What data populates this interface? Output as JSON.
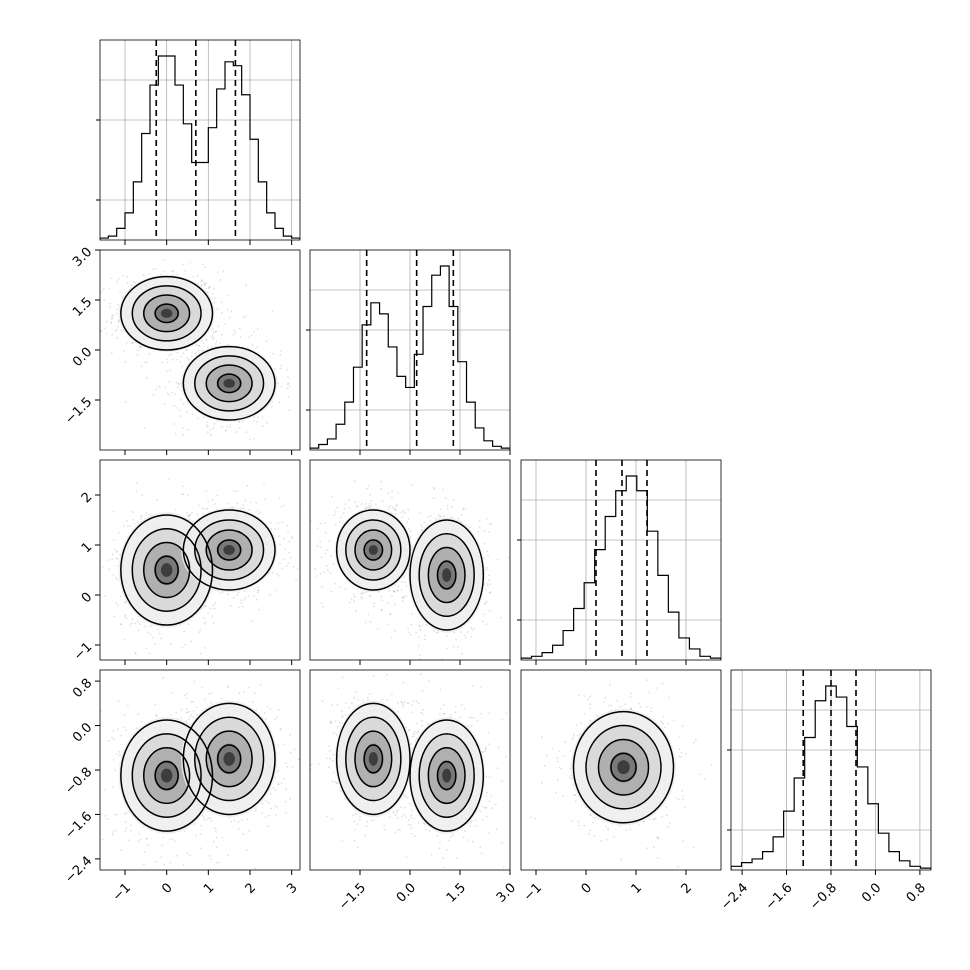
{
  "chart_data": {
    "type": "corner",
    "parameters": [
      "",
      "",
      "",
      ""
    ],
    "axes": [
      {
        "range": [
          -1.6,
          3.2
        ],
        "ticks": [
          -1,
          0,
          1,
          2,
          3
        ],
        "tick_labels": [
          "−1",
          "0",
          "1",
          "2",
          "3"
        ]
      },
      {
        "range": [
          -3.0,
          3.0
        ],
        "ticks": [
          -1.5,
          0.0,
          1.5,
          3.0
        ],
        "tick_labels": [
          "−1.5",
          "0.0",
          "1.5",
          "3.0"
        ]
      },
      {
        "range": [
          -1.3,
          2.7
        ],
        "ticks": [
          -1,
          0,
          1,
          2
        ],
        "tick_labels": [
          "−1",
          "0",
          "1",
          "2"
        ]
      },
      {
        "range": [
          -2.6,
          1.0
        ],
        "ticks": [
          -2.4,
          -1.6,
          -0.8,
          0.0,
          0.8
        ],
        "tick_labels": [
          "−2.4",
          "−1.6",
          "−0.8",
          "0.0",
          "0.8"
        ]
      }
    ],
    "grid": true,
    "histograms": [
      {
        "param": 0,
        "bin_edges_range": [
          -1.6,
          3.2
        ],
        "quantile_lines": [
          -0.25,
          0.7,
          1.65
        ],
        "counts": [
          1,
          2,
          6,
          14,
          30,
          55,
          80,
          95,
          95,
          80,
          60,
          40,
          40,
          58,
          78,
          92,
          90,
          75,
          52,
          30,
          14,
          6,
          2,
          1
        ]
      },
      {
        "param": 1,
        "bin_edges_range": [
          -3.0,
          3.0
        ],
        "quantile_lines": [
          -1.3,
          0.2,
          1.3
        ],
        "counts": [
          1,
          3,
          6,
          14,
          26,
          45,
          68,
          80,
          74,
          56,
          40,
          34,
          52,
          78,
          95,
          100,
          78,
          48,
          26,
          12,
          5,
          2,
          1
        ]
      },
      {
        "param": 2,
        "bin_edges_range": [
          -1.3,
          2.7
        ],
        "quantile_lines": [
          0.2,
          0.72,
          1.22
        ],
        "counts": [
          1,
          2,
          4,
          8,
          16,
          28,
          42,
          60,
          78,
          92,
          100,
          92,
          70,
          46,
          26,
          12,
          6,
          2,
          1
        ]
      },
      {
        "param": 3,
        "bin_edges_range": [
          -2.6,
          1.0
        ],
        "quantile_lines": [
          -1.3,
          -0.8,
          -0.35
        ],
        "counts": [
          2,
          4,
          6,
          10,
          18,
          32,
          50,
          72,
          92,
          100,
          94,
          78,
          56,
          36,
          20,
          10,
          5,
          2,
          1
        ]
      }
    ],
    "pairs": [
      {
        "x": 0,
        "y": 1,
        "modes": [
          {
            "center": [
              0.0,
              1.1
            ],
            "sigma": [
              0.55,
              0.55
            ],
            "rho": 0
          },
          {
            "center": [
              1.5,
              -1.0
            ],
            "sigma": [
              0.55,
              0.55
            ],
            "rho": 0
          }
        ]
      },
      {
        "x": 0,
        "y": 2,
        "modes": [
          {
            "center": [
              0.0,
              0.5
            ],
            "sigma": [
              0.55,
              0.55
            ],
            "rho": 0
          },
          {
            "center": [
              1.5,
              0.9
            ],
            "sigma": [
              0.55,
              0.4
            ],
            "rho": 0
          }
        ]
      },
      {
        "x": 1,
        "y": 2,
        "modes": [
          {
            "center": [
              -1.1,
              0.9
            ],
            "sigma": [
              0.55,
              0.4
            ],
            "rho": 0
          },
          {
            "center": [
              1.1,
              0.4
            ],
            "sigma": [
              0.55,
              0.55
            ],
            "rho": 0
          }
        ]
      },
      {
        "x": 0,
        "y": 3,
        "modes": [
          {
            "center": [
              0.0,
              -0.9
            ],
            "sigma": [
              0.55,
              0.5
            ],
            "rho": 0
          },
          {
            "center": [
              1.5,
              -0.6
            ],
            "sigma": [
              0.55,
              0.5
            ],
            "rho": 0
          }
        ]
      },
      {
        "x": 1,
        "y": 3,
        "modes": [
          {
            "center": [
              -1.1,
              -0.6
            ],
            "sigma": [
              0.55,
              0.5
            ],
            "rho": 0
          },
          {
            "center": [
              1.1,
              -0.9
            ],
            "sigma": [
              0.55,
              0.5
            ],
            "rho": 0
          }
        ]
      },
      {
        "x": 2,
        "y": 3,
        "modes": [
          {
            "center": [
              0.75,
              -0.75
            ],
            "sigma": [
              0.5,
              0.5
            ],
            "rho": 0
          }
        ]
      }
    ],
    "contour_levels_sigma": [
      0.5,
      1.0,
      1.5,
      2.0
    ]
  }
}
